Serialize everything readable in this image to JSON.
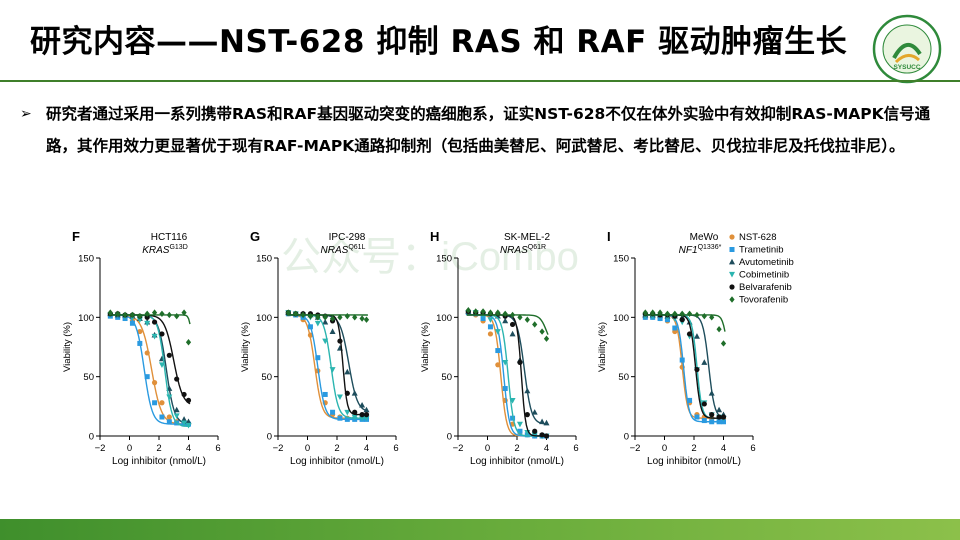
{
  "slide": {
    "title": "研究内容——NST-628 抑制 RAS 和 RAF 驱动肿瘤生长",
    "bullet_mark": "➢",
    "bullet_text": "研究者通过采用一系列携带RAS和RAF基因驱动突变的癌细胞系，证实NST-628不仅在体外实验中有效抑制RAS-MAPK信号通路，其作用效力更显著优于现有RAF-MAPK通路抑制剂（包括曲美替尼、阿武替尼、考比替尼、贝伐拉非尼及托伐拉非尼）。",
    "watermark": "公众号：iCombo",
    "logo_text": "SYSUCC"
  },
  "colors": {
    "title_rule": "#3f7f2a",
    "NST-628": "#e0903a",
    "Trametinib": "#2a9ae0",
    "Avutometinib": "#1e4d5c",
    "Cobimetinib": "#2bb5b0",
    "Belvarafenib": "#111111",
    "Tovorafenib": "#1f6e2a"
  },
  "chart_data": [
    {
      "type": "scatter",
      "panel": "F",
      "cell_line": "HCT116",
      "mutation_gene": "KRAS",
      "mutation_sup": "G13D",
      "xlabel": "Log inhibitor (nmol/L)",
      "ylabel": "Viability (%)",
      "xlim": [
        -2,
        6
      ],
      "ylim": [
        0,
        150
      ],
      "xticks": [
        -2,
        0,
        2,
        4,
        6
      ],
      "yticks": [
        0,
        50,
        100,
        150
      ],
      "x": [
        -1.3,
        -0.8,
        -0.3,
        0.2,
        0.7,
        1.2,
        1.7,
        2.2,
        2.7,
        3.2,
        3.7,
        4.0
      ],
      "series": [
        {
          "name": "NST-628",
          "ic50": 1.5,
          "bottom": 10,
          "hill": 1.3,
          "values": [
            102,
            101,
            100,
            97,
            88,
            70,
            45,
            28,
            16,
            12,
            10,
            10
          ]
        },
        {
          "name": "Trametinib",
          "ic50": 1.0,
          "bottom": 10,
          "hill": 1.6,
          "values": [
            101,
            100,
            99,
            95,
            78,
            50,
            28,
            16,
            12,
            11,
            10,
            10
          ]
        },
        {
          "name": "Avutometinib",
          "ic50": 2.5,
          "bottom": 10,
          "hill": 1.6,
          "values": [
            103,
            102,
            102,
            101,
            99,
            96,
            85,
            65,
            40,
            22,
            14,
            12
          ]
        },
        {
          "name": "Cobimetinib",
          "ic50": 2.4,
          "bottom": 8,
          "hill": 1.8,
          "values": [
            102,
            102,
            101,
            100,
            98,
            95,
            84,
            60,
            33,
            17,
            11,
            9
          ]
        },
        {
          "name": "Belvarafenib",
          "ic50": 3.0,
          "bottom": 25,
          "hill": 1.4,
          "values": [
            103,
            103,
            102,
            102,
            101,
            100,
            96,
            86,
            68,
            48,
            35,
            30
          ]
        },
        {
          "name": "Tovorafenib",
          "ic50": 4.2,
          "bottom": 70,
          "hill": 5,
          "values": [
            104,
            103,
            102,
            102,
            101,
            103,
            104,
            103,
            102,
            101,
            104,
            79
          ]
        }
      ]
    },
    {
      "type": "scatter",
      "panel": "G",
      "cell_line": "IPC-298",
      "mutation_gene": "NRAS",
      "mutation_sup": "Q61L",
      "xlabel": "Log inhibitor (nmol/L)",
      "ylabel": "Viability (%)",
      "xlim": [
        -2,
        6
      ],
      "ylim": [
        0,
        150
      ],
      "xticks": [
        -2,
        0,
        2,
        4,
        6
      ],
      "yticks": [
        0,
        50,
        100,
        150
      ],
      "x": [
        -1.3,
        -0.8,
        -0.3,
        0.2,
        0.7,
        1.2,
        1.7,
        2.2,
        2.7,
        3.2,
        3.7,
        4.0
      ],
      "series": [
        {
          "name": "NST-628",
          "ic50": 0.5,
          "bottom": 15,
          "hill": 1.8,
          "values": [
            103,
            102,
            98,
            85,
            55,
            28,
            18,
            16,
            15,
            15,
            15,
            15
          ]
        },
        {
          "name": "Trametinib",
          "ic50": 0.7,
          "bottom": 14,
          "hill": 1.8,
          "values": [
            103,
            102,
            100,
            92,
            66,
            35,
            20,
            15,
            14,
            14,
            14,
            14
          ]
        },
        {
          "name": "Avutometinib",
          "ic50": 2.8,
          "bottom": 20,
          "hill": 1.5,
          "values": [
            104,
            103,
            103,
            102,
            100,
            96,
            88,
            74,
            54,
            36,
            26,
            22
          ]
        },
        {
          "name": "Cobimetinib",
          "ic50": 1.6,
          "bottom": 15,
          "hill": 1.8,
          "values": [
            104,
            103,
            102,
            100,
            95,
            80,
            56,
            33,
            20,
            16,
            15,
            15
          ]
        },
        {
          "name": "Belvarafenib",
          "ic50": 2.4,
          "bottom": 18,
          "hill": 3,
          "values": [
            104,
            103,
            103,
            103,
            102,
            101,
            97,
            80,
            36,
            20,
            18,
            18
          ]
        },
        {
          "name": "Tovorafenib",
          "ic50": 6,
          "bottom": 98,
          "hill": 1,
          "values": [
            104,
            103,
            102,
            101,
            100,
            100,
            99,
            100,
            101,
            100,
            99,
            98
          ]
        }
      ]
    },
    {
      "type": "scatter",
      "panel": "H",
      "cell_line": "SK-MEL-2",
      "mutation_gene": "NRAS",
      "mutation_sup": "Q61R",
      "xlabel": "Log inhibitor (nmol/L)",
      "ylabel": "Viability (%)",
      "xlim": [
        -2,
        6
      ],
      "ylim": [
        0,
        150
      ],
      "xticks": [
        -2,
        0,
        2,
        4,
        6
      ],
      "yticks": [
        0,
        50,
        100,
        150
      ],
      "x": [
        -1.3,
        -0.8,
        -0.3,
        0.2,
        0.7,
        1.2,
        1.7,
        2.2,
        2.7,
        3.2,
        3.7,
        4.0
      ],
      "series": [
        {
          "name": "NST-628",
          "ic50": 0.9,
          "bottom": 0,
          "hill": 2.2,
          "values": [
            104,
            102,
            97,
            86,
            60,
            30,
            10,
            3,
            1,
            0,
            0,
            0
          ]
        },
        {
          "name": "Trametinib",
          "ic50": 1.1,
          "bottom": 0,
          "hill": 2.2,
          "values": [
            104,
            103,
            99,
            92,
            72,
            40,
            15,
            4,
            1,
            0,
            0,
            0
          ]
        },
        {
          "name": "Avutometinib",
          "ic50": 2.5,
          "bottom": 10,
          "hill": 1.8,
          "values": [
            105,
            104,
            104,
            103,
            101,
            97,
            86,
            64,
            38,
            20,
            12,
            11
          ]
        },
        {
          "name": "Cobimetinib",
          "ic50": 1.4,
          "bottom": 0,
          "hill": 2.2,
          "values": [
            104,
            104,
            102,
            98,
            88,
            62,
            30,
            10,
            3,
            1,
            0,
            0
          ]
        },
        {
          "name": "Belvarafenib",
          "ic50": 2.3,
          "bottom": 0,
          "hill": 3,
          "values": [
            105,
            104,
            104,
            103,
            103,
            101,
            94,
            62,
            18,
            4,
            1,
            0
          ]
        },
        {
          "name": "Tovorafenib",
          "ic50": 4.0,
          "bottom": 75,
          "hill": 2,
          "values": [
            106,
            105,
            105,
            104,
            104,
            103,
            102,
            100,
            98,
            94,
            88,
            82
          ]
        }
      ]
    },
    {
      "type": "scatter",
      "panel": "I",
      "cell_line": "MeWo",
      "mutation_gene": "NF1",
      "mutation_sup": "Q1336*",
      "xlabel": "Log inhibitor (nmol/L)",
      "ylabel": "Viability (%)",
      "xlim": [
        -2,
        6
      ],
      "ylim": [
        0,
        150
      ],
      "xticks": [
        -2,
        0,
        2,
        4,
        6
      ],
      "yticks": [
        0,
        50,
        100,
        150
      ],
      "x": [
        -1.3,
        -0.8,
        -0.3,
        0.2,
        0.7,
        1.2,
        1.7,
        2.2,
        2.7,
        3.2,
        3.7,
        4.0
      ],
      "series": [
        {
          "name": "NST-628",
          "ic50": 1.2,
          "bottom": 15,
          "hill": 2.4,
          "values": [
            100,
            100,
            99,
            97,
            88,
            58,
            28,
            18,
            16,
            15,
            15,
            15
          ]
        },
        {
          "name": "Trametinib",
          "ic50": 1.3,
          "bottom": 12,
          "hill": 2.4,
          "values": [
            100,
            100,
            99,
            98,
            91,
            64,
            30,
            16,
            13,
            12,
            12,
            12
          ]
        },
        {
          "name": "Avutometinib",
          "ic50": 3.0,
          "bottom": 15,
          "hill": 2.2,
          "values": [
            102,
            102,
            102,
            101,
            101,
            100,
            96,
            84,
            62,
            36,
            22,
            18
          ]
        },
        {
          "name": "Cobimetinib",
          "ic50": 2.2,
          "bottom": 15,
          "hill": 2.6,
          "values": [
            101,
            101,
            101,
            100,
            99,
            96,
            84,
            56,
            28,
            18,
            16,
            15
          ]
        },
        {
          "name": "Belvarafenib",
          "ic50": 2.1,
          "bottom": 15,
          "hill": 2.5,
          "values": [
            103,
            103,
            102,
            102,
            101,
            98,
            86,
            56,
            27,
            18,
            16,
            16
          ]
        },
        {
          "name": "Tovorafenib",
          "ic50": 4.2,
          "bottom": 60,
          "hill": 3,
          "values": [
            104,
            104,
            104,
            103,
            103,
            103,
            103,
            102,
            101,
            100,
            90,
            78
          ]
        }
      ]
    }
  ],
  "legend": [
    "NST-628",
    "Trametinib",
    "Avutometinib",
    "Cobimetinib",
    "Belvarafenib",
    "Tovorafenib"
  ]
}
